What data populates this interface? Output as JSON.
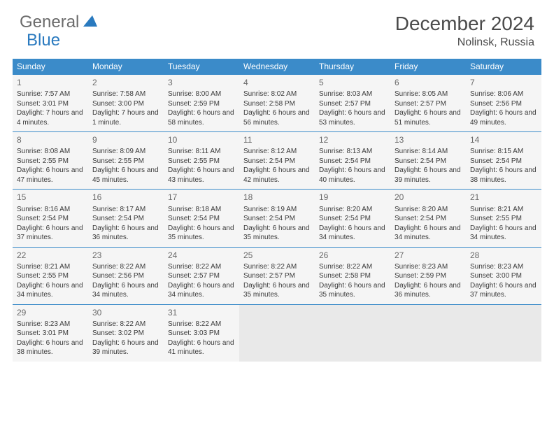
{
  "logo": {
    "general": "General",
    "blue": "Blue"
  },
  "title": "December 2024",
  "location": "Nolinsk, Russia",
  "weekdays": [
    "Sunday",
    "Monday",
    "Tuesday",
    "Wednesday",
    "Thursday",
    "Friday",
    "Saturday"
  ],
  "colors": {
    "header_bg": "#3b8bc9",
    "header_text": "#ffffff",
    "day_bg": "#f5f5f5",
    "empty_bg": "#e9e9e9",
    "text": "#3a3a3a",
    "logo_gray": "#6b6b6b",
    "logo_blue": "#2a7abf"
  },
  "days": [
    {
      "n": 1,
      "sunrise": "7:57 AM",
      "sunset": "3:01 PM",
      "daylight": "7 hours and 4 minutes."
    },
    {
      "n": 2,
      "sunrise": "7:58 AM",
      "sunset": "3:00 PM",
      "daylight": "7 hours and 1 minute."
    },
    {
      "n": 3,
      "sunrise": "8:00 AM",
      "sunset": "2:59 PM",
      "daylight": "6 hours and 58 minutes."
    },
    {
      "n": 4,
      "sunrise": "8:02 AM",
      "sunset": "2:58 PM",
      "daylight": "6 hours and 56 minutes."
    },
    {
      "n": 5,
      "sunrise": "8:03 AM",
      "sunset": "2:57 PM",
      "daylight": "6 hours and 53 minutes."
    },
    {
      "n": 6,
      "sunrise": "8:05 AM",
      "sunset": "2:57 PM",
      "daylight": "6 hours and 51 minutes."
    },
    {
      "n": 7,
      "sunrise": "8:06 AM",
      "sunset": "2:56 PM",
      "daylight": "6 hours and 49 minutes."
    },
    {
      "n": 8,
      "sunrise": "8:08 AM",
      "sunset": "2:55 PM",
      "daylight": "6 hours and 47 minutes."
    },
    {
      "n": 9,
      "sunrise": "8:09 AM",
      "sunset": "2:55 PM",
      "daylight": "6 hours and 45 minutes."
    },
    {
      "n": 10,
      "sunrise": "8:11 AM",
      "sunset": "2:55 PM",
      "daylight": "6 hours and 43 minutes."
    },
    {
      "n": 11,
      "sunrise": "8:12 AM",
      "sunset": "2:54 PM",
      "daylight": "6 hours and 42 minutes."
    },
    {
      "n": 12,
      "sunrise": "8:13 AM",
      "sunset": "2:54 PM",
      "daylight": "6 hours and 40 minutes."
    },
    {
      "n": 13,
      "sunrise": "8:14 AM",
      "sunset": "2:54 PM",
      "daylight": "6 hours and 39 minutes."
    },
    {
      "n": 14,
      "sunrise": "8:15 AM",
      "sunset": "2:54 PM",
      "daylight": "6 hours and 38 minutes."
    },
    {
      "n": 15,
      "sunrise": "8:16 AM",
      "sunset": "2:54 PM",
      "daylight": "6 hours and 37 minutes."
    },
    {
      "n": 16,
      "sunrise": "8:17 AM",
      "sunset": "2:54 PM",
      "daylight": "6 hours and 36 minutes."
    },
    {
      "n": 17,
      "sunrise": "8:18 AM",
      "sunset": "2:54 PM",
      "daylight": "6 hours and 35 minutes."
    },
    {
      "n": 18,
      "sunrise": "8:19 AM",
      "sunset": "2:54 PM",
      "daylight": "6 hours and 35 minutes."
    },
    {
      "n": 19,
      "sunrise": "8:20 AM",
      "sunset": "2:54 PM",
      "daylight": "6 hours and 34 minutes."
    },
    {
      "n": 20,
      "sunrise": "8:20 AM",
      "sunset": "2:54 PM",
      "daylight": "6 hours and 34 minutes."
    },
    {
      "n": 21,
      "sunrise": "8:21 AM",
      "sunset": "2:55 PM",
      "daylight": "6 hours and 34 minutes."
    },
    {
      "n": 22,
      "sunrise": "8:21 AM",
      "sunset": "2:55 PM",
      "daylight": "6 hours and 34 minutes."
    },
    {
      "n": 23,
      "sunrise": "8:22 AM",
      "sunset": "2:56 PM",
      "daylight": "6 hours and 34 minutes."
    },
    {
      "n": 24,
      "sunrise": "8:22 AM",
      "sunset": "2:57 PM",
      "daylight": "6 hours and 34 minutes."
    },
    {
      "n": 25,
      "sunrise": "8:22 AM",
      "sunset": "2:57 PM",
      "daylight": "6 hours and 35 minutes."
    },
    {
      "n": 26,
      "sunrise": "8:22 AM",
      "sunset": "2:58 PM",
      "daylight": "6 hours and 35 minutes."
    },
    {
      "n": 27,
      "sunrise": "8:23 AM",
      "sunset": "2:59 PM",
      "daylight": "6 hours and 36 minutes."
    },
    {
      "n": 28,
      "sunrise": "8:23 AM",
      "sunset": "3:00 PM",
      "daylight": "6 hours and 37 minutes."
    },
    {
      "n": 29,
      "sunrise": "8:23 AM",
      "sunset": "3:01 PM",
      "daylight": "6 hours and 38 minutes."
    },
    {
      "n": 30,
      "sunrise": "8:22 AM",
      "sunset": "3:02 PM",
      "daylight": "6 hours and 39 minutes."
    },
    {
      "n": 31,
      "sunrise": "8:22 AM",
      "sunset": "3:03 PM",
      "daylight": "6 hours and 41 minutes."
    }
  ],
  "labels": {
    "sunrise": "Sunrise: ",
    "sunset": "Sunset: ",
    "daylight": "Daylight: "
  },
  "grid": {
    "rows": 5,
    "cols": 7,
    "start_weekday": 0
  }
}
